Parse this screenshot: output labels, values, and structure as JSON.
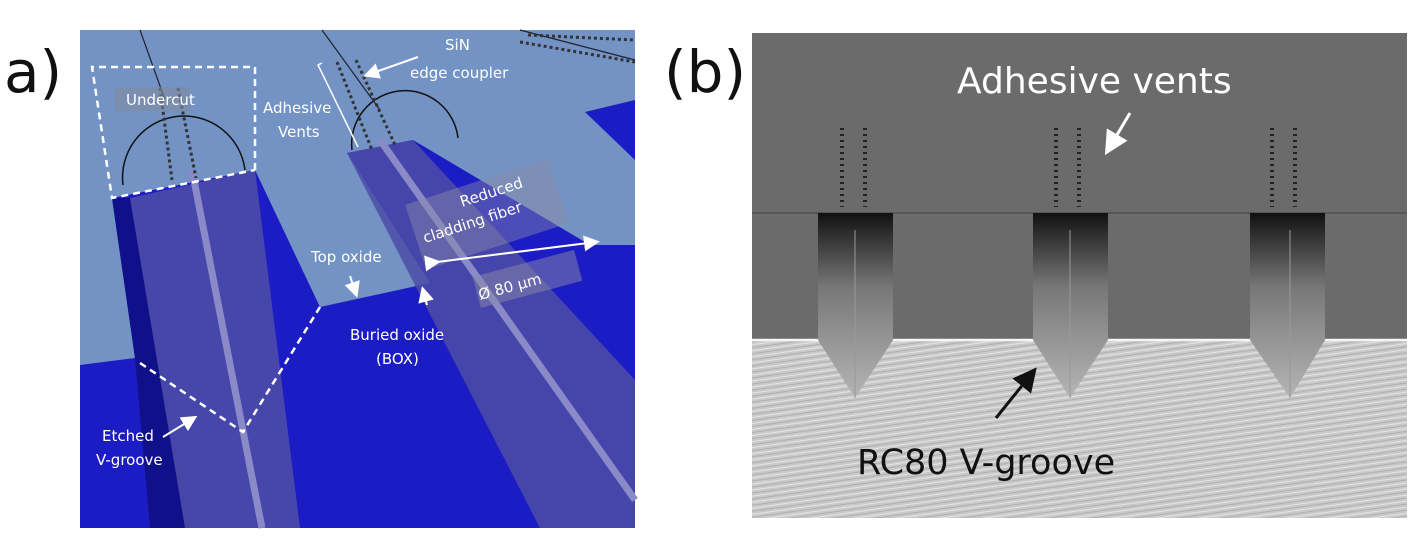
{
  "panel_a": {
    "letter": "a)",
    "labels": {
      "undercut": "Undercut",
      "sin_line1": "SiN",
      "sin_line2": "edge coupler",
      "vents_line1": "Adhesive",
      "vents_line2": "Vents",
      "fiber_line1": "Reduced",
      "fiber_line2": "cladding fiber",
      "top_oxide": "Top oxide",
      "diameter": "Ø 80 µm",
      "box_line1": "Buried oxide",
      "box_line2": "(BOX)",
      "groove_line1": "Etched",
      "groove_line2": "V-groove"
    },
    "colors": {
      "top_oxide": "#7393c4",
      "box": "#1c1cc4",
      "fiber": "#4c4ca8"
    }
  },
  "panel_b": {
    "letter": "(b)",
    "labels": {
      "vents": "Adhesive vents",
      "groove": "RC80 V-groove"
    }
  }
}
